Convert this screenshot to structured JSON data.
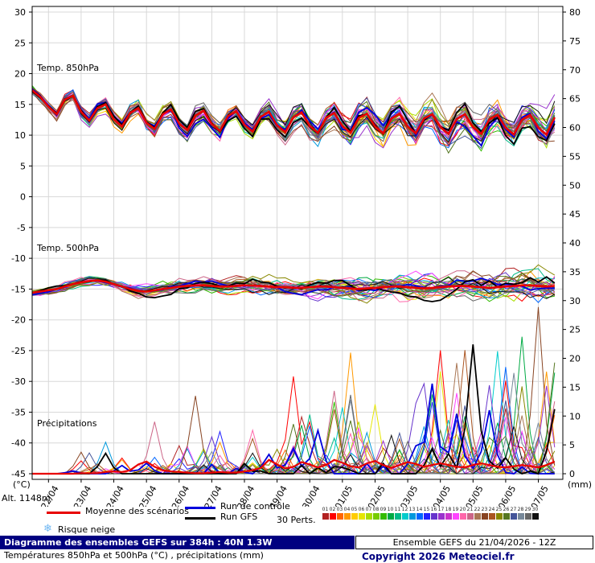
{
  "units": {
    "left": "(°C)",
    "right": "(mm)"
  },
  "labels": {
    "alt": "Alt. 1148m"
  },
  "sections": {
    "t850": "Temp. 850hPa",
    "t500": "Temp. 500hPa",
    "precip": "Précipitations"
  },
  "x_labels": [
    "22/04",
    "23/04",
    "24/04",
    "25/04",
    "26/04",
    "27/04",
    "28/04",
    "29/04",
    "30/04",
    "01/05",
    "02/05",
    "03/05",
    "04/05",
    "05/05",
    "06/05",
    "07/05"
  ],
  "legend": {
    "mean_label": "Moyenne des scénarios",
    "control_label": "Run de contrôle",
    "gfs_label": "Run GFS",
    "perts_label": "30 Perts.",
    "snow_label": "Risque neige",
    "snow_icon": "❄",
    "mean_color": "#e80000",
    "control_color": "#0000dd",
    "gfs_color": "#000000",
    "snow_color": "#6fb7f2",
    "member_numbers": [
      "01",
      "02",
      "03",
      "04",
      "05",
      "06",
      "07",
      "08",
      "09",
      "10",
      "11",
      "12",
      "13",
      "14",
      "15",
      "16",
      "17",
      "18",
      "19",
      "20",
      "21",
      "22",
      "23",
      "24",
      "25",
      "26",
      "27",
      "28",
      "29",
      "30"
    ],
    "member_colors": [
      "#b22222",
      "#ff0000",
      "#ff6600",
      "#ff9900",
      "#ffcc00",
      "#e6e600",
      "#aadd00",
      "#77cc00",
      "#33bb00",
      "#00aa44",
      "#00bb88",
      "#00cccc",
      "#0099dd",
      "#0066ff",
      "#2222ff",
      "#6633cc",
      "#9933cc",
      "#cc33cc",
      "#ff44ff",
      "#ff66aa",
      "#cc6688",
      "#aa7755",
      "#884422",
      "#aa5522",
      "#888800",
      "#557722",
      "#445599",
      "#778899",
      "#666666",
      "#111111"
    ]
  },
  "footer": {
    "left_line1": "Diagramme des ensembles GEFS sur 384h : 40N 1.3W",
    "left_line2": "Températures 850hPa et 500hPa (°C) , précipitations (mm)",
    "right_line1": "Ensemble GEFS du 21/04/2026 - 12Z",
    "right_line2": "Copyright 2026 Meteociel.fr"
  },
  "chart_data": {
    "type": "line",
    "title": "Diagramme des ensembles GEFS sur 384h : 40N 1.3W",
    "x": {
      "start": 0,
      "step": 6,
      "count": 65,
      "unit": "hours from 21/04 12Z"
    },
    "axis": {
      "left_label": "(°C)",
      "right_label": "(mm)",
      "left_range": [
        -45,
        30
      ],
      "right_range": [
        0,
        80
      ],
      "left_ticks": [
        30,
        25,
        20,
        15,
        10,
        5,
        0,
        -5,
        -10,
        -15,
        -20,
        -25,
        -30,
        -35,
        -40,
        -45
      ],
      "right_ticks": [
        80,
        75,
        70,
        65,
        60,
        55,
        50,
        45,
        40,
        35,
        30,
        25,
        20,
        15,
        10,
        5,
        0
      ],
      "grid": true
    },
    "day_hours": [
      12,
      36,
      60,
      84,
      108,
      132,
      156,
      180,
      204,
      228,
      252,
      276,
      300,
      324,
      348,
      372
    ],
    "series": {
      "t850_mean": [
        17.3,
        16.2,
        14.6,
        13.4,
        15.8,
        16.4,
        13.8,
        12.4,
        14.4,
        15.0,
        12.6,
        11.4,
        13.6,
        14.4,
        12.0,
        11.0,
        13.4,
        14.2,
        11.9,
        10.8,
        13.2,
        14.0,
        11.8,
        10.7,
        13.1,
        13.9,
        11.7,
        10.6,
        13.0,
        13.8,
        11.6,
        10.5,
        12.9,
        13.7,
        11.5,
        10.4,
        12.8,
        13.6,
        11.5,
        10.4,
        12.8,
        13.5,
        11.4,
        10.3,
        12.7,
        13.5,
        11.4,
        10.3,
        12.7,
        13.4,
        11.3,
        10.2,
        12.6,
        13.4,
        11.3,
        10.2,
        12.6,
        13.3,
        11.2,
        10.1,
        12.5,
        13.3,
        11.2,
        10.1,
        12.9
      ],
      "t500_mean": [
        -15.6,
        -15.4,
        -15.2,
        -15.0,
        -14.6,
        -14.2,
        -13.9,
        -13.7,
        -13.6,
        -13.8,
        -14.2,
        -14.6,
        -15.0,
        -15.3,
        -15.4,
        -15.2,
        -15.0,
        -14.8,
        -14.6,
        -14.5,
        -14.4,
        -14.4,
        -14.5,
        -14.6,
        -14.6,
        -14.5,
        -14.4,
        -14.4,
        -14.5,
        -14.6,
        -14.7,
        -14.7,
        -14.8,
        -14.8,
        -14.7,
        -14.6,
        -14.6,
        -14.7,
        -14.8,
        -14.9,
        -15.0,
        -14.9,
        -14.8,
        -14.7,
        -14.6,
        -14.6,
        -14.7,
        -14.8,
        -14.9,
        -14.8,
        -14.7,
        -14.6,
        -14.5,
        -14.5,
        -14.6,
        -14.7,
        -14.8,
        -14.7,
        -14.6,
        -14.5,
        -14.4,
        -14.4,
        -14.5,
        -14.6,
        -14.5
      ],
      "precip_mean": [
        0,
        0,
        0,
        0,
        0,
        0,
        0.1,
        0.1,
        0.1,
        0.3,
        0.4,
        0.3,
        0.6,
        1.6,
        2.1,
        1.2,
        0.6,
        0.4,
        0.3,
        0.2,
        0.1,
        0.1,
        0.2,
        0.3,
        0.2,
        0.2,
        0.4,
        0.6,
        1.0,
        2.4,
        1.6,
        0.9,
        1.2,
        2.0,
        1.6,
        1.1,
        1.5,
        2.4,
        1.9,
        1.3,
        1.1,
        1.8,
        2.2,
        1.5,
        1.0,
        1.5,
        2.0,
        1.7,
        1.2,
        1.5,
        1.8,
        1.5,
        1.2,
        1.1,
        1.5,
        1.8,
        1.5,
        1.2,
        1.1,
        1.3,
        1.5,
        1.3,
        1.1,
        1.5,
        2.1
      ]
    },
    "ensemble": {
      "count": 30,
      "spread_850": [
        1.0,
        4.5
      ],
      "spread_500": [
        0.7,
        3.2
      ],
      "precip_spike_max": 38
    },
    "legend_position": "bottom"
  }
}
